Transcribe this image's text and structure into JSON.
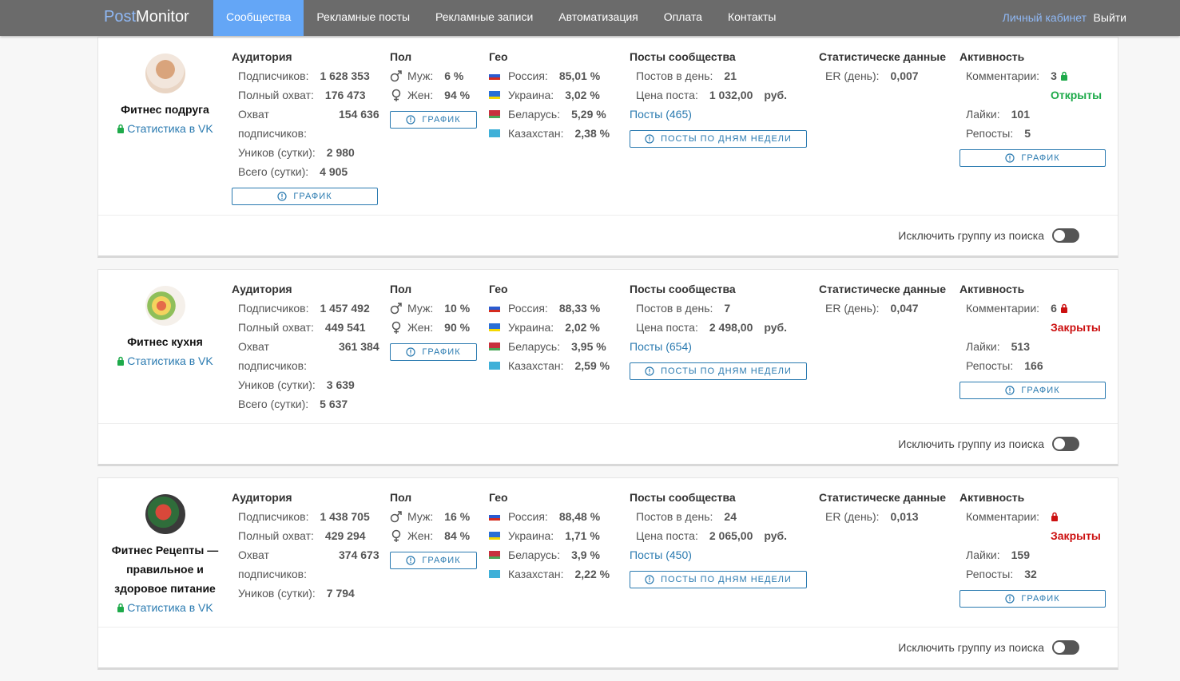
{
  "nav": {
    "brand": [
      "Post",
      "Monitor"
    ],
    "items": [
      "Сообщества",
      "Рекламные посты",
      "Рекламные записи",
      "Автоматизация",
      "Оплата",
      "Контакты"
    ],
    "active": 0,
    "account": "Личный кабинет",
    "logout": "Выйти"
  },
  "groups": [
    {
      "name": "Фитнес подруга",
      "vk_link": "Статистика в VK",
      "audience": {
        "title": "Аудитория",
        "rows": [
          [
            "Подписчиков:",
            "1 628 353"
          ],
          [
            "Полный охват:",
            "176 473"
          ],
          [
            "Охват подписчиков:",
            "154 636"
          ],
          [
            "Уников (сутки):",
            "2 980"
          ],
          [
            "Всего (сутки):",
            "4 905"
          ]
        ],
        "button": "ГРАФИК"
      },
      "gender": {
        "title": "Пол",
        "rows": [
          [
            "Муж:",
            "6 %"
          ],
          [
            "Жен:",
            "94 %"
          ]
        ],
        "button": "ГРАФИК"
      },
      "geo": {
        "title": "Гео",
        "rows": [
          [
            "Россия:",
            "85,01 %"
          ],
          [
            "Украина:",
            "3,02 %"
          ],
          [
            "Беларусь:",
            "5,29 %"
          ],
          [
            "Казахстан:",
            "2,38 %"
          ]
        ]
      },
      "posts": {
        "title": "Посты сообщества",
        "rows": [
          [
            "Постов в день:",
            "21"
          ],
          [
            "Цена поста:",
            "1 032,00",
            "руб."
          ]
        ],
        "link": "Посты (465)",
        "button": "ПОСТЫ ПО ДНЯМ НЕДЕЛИ"
      },
      "stats": {
        "title": "Статистическе данные",
        "rows": [
          [
            "ER (день):",
            "0,007"
          ]
        ]
      },
      "activity": {
        "title": "Активность",
        "comments": [
          "Комментарии:",
          "3"
        ],
        "status": "Открыты",
        "open": true,
        "rows": [
          [
            "Лайки:",
            "101"
          ],
          [
            "Репосты:",
            "5"
          ]
        ],
        "button": "ГРАФИК"
      },
      "exclude": "Исключить группу из поиска"
    },
    {
      "name": "Фитнес кухня",
      "vk_link": "Статистика в VK",
      "audience": {
        "title": "Аудитория",
        "rows": [
          [
            "Подписчиков:",
            "1 457 492"
          ],
          [
            "Полный охват:",
            "449 541"
          ],
          [
            "Охват подписчиков:",
            "361 384"
          ],
          [
            "Уников (сутки):",
            "3 639"
          ],
          [
            "Всего (сутки):",
            "5 637"
          ]
        ]
      },
      "gender": {
        "title": "Пол",
        "rows": [
          [
            "Муж:",
            "10 %"
          ],
          [
            "Жен:",
            "90 %"
          ]
        ],
        "button": "ГРАФИК"
      },
      "geo": {
        "title": "Гео",
        "rows": [
          [
            "Россия:",
            "88,33 %"
          ],
          [
            "Украина:",
            "2,02 %"
          ],
          [
            "Беларусь:",
            "3,95 %"
          ],
          [
            "Казахстан:",
            "2,59 %"
          ]
        ]
      },
      "posts": {
        "title": "Посты сообщества",
        "rows": [
          [
            "Постов в день:",
            "7"
          ],
          [
            "Цена поста:",
            "2 498,00",
            "руб."
          ]
        ],
        "link": "Посты (654)",
        "button": "ПОСТЫ ПО ДНЯМ НЕДЕЛИ"
      },
      "stats": {
        "title": "Статистическе данные",
        "rows": [
          [
            "ER (день):",
            "0,047"
          ]
        ]
      },
      "activity": {
        "title": "Активность",
        "comments": [
          "Комментарии:",
          "6"
        ],
        "status": "Закрыты",
        "open": false,
        "rows": [
          [
            "Лайки:",
            "513"
          ],
          [
            "Репосты:",
            "166"
          ]
        ],
        "button": "ГРАФИК"
      },
      "exclude": "Исключить группу из поиска"
    },
    {
      "name": "Фитнес Рецепты — правильное и здоровое питание",
      "vk_link": "Статистика в VK",
      "audience": {
        "title": "Аудитория",
        "rows": [
          [
            "Подписчиков:",
            "1 438 705"
          ],
          [
            "Полный охват:",
            "429 294"
          ],
          [
            "Охват подписчиков:",
            "374 673"
          ],
          [
            "Уников (сутки):",
            "7 794"
          ]
        ]
      },
      "gender": {
        "title": "Пол",
        "rows": [
          [
            "Муж:",
            "16 %"
          ],
          [
            "Жен:",
            "84 %"
          ]
        ],
        "button": "ГРАФИК"
      },
      "geo": {
        "title": "Гео",
        "rows": [
          [
            "Россия:",
            "88,48 %"
          ],
          [
            "Украина:",
            "1,71 %"
          ],
          [
            "Беларусь:",
            "3,9 %"
          ],
          [
            "Казахстан:",
            "2,22 %"
          ]
        ]
      },
      "posts": {
        "title": "Посты сообщества",
        "rows": [
          [
            "Постов в день:",
            "24"
          ],
          [
            "Цена поста:",
            "2 065,00",
            "руб."
          ]
        ],
        "link": "Посты (450)",
        "button": "ПОСТЫ ПО ДНЯМ НЕДЕЛИ"
      },
      "stats": {
        "title": "Статистическе данные",
        "rows": [
          [
            "ER (день):",
            "0,013"
          ]
        ]
      },
      "activity": {
        "title": "Активность",
        "comments": [
          "Комментарии:"
        ],
        "status": "Закрыты",
        "open": false,
        "rows": [
          [
            "Лайки:",
            "159"
          ],
          [
            "Репосты:",
            "32"
          ]
        ],
        "button": "ГРАФИК"
      },
      "exclude": "Исключить группу из поиска"
    }
  ]
}
